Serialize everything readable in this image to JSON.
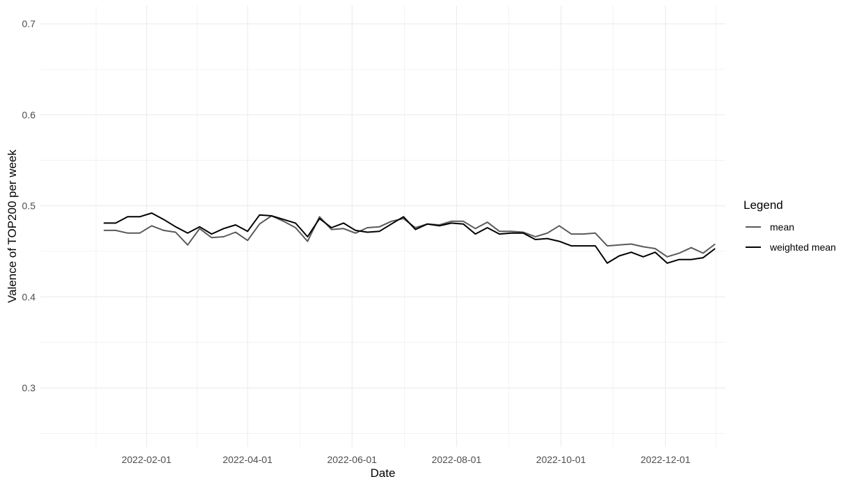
{
  "chart_data": {
    "type": "line",
    "xlabel": "Date",
    "ylabel": "Valence of TOP200 per week",
    "ylim": [
      0.235,
      0.72
    ],
    "xlim": [
      "2021-12-01",
      "2023-01-05"
    ],
    "x_ticks": [
      "2022-02-01",
      "2022-04-01",
      "2022-06-01",
      "2022-08-01",
      "2022-10-01",
      "2022-12-01"
    ],
    "y_ticks": [
      0.3,
      0.4,
      0.5,
      0.6,
      0.7
    ],
    "y_tick_labels": [
      "0.3",
      "0.4",
      "0.5",
      "0.6",
      "0.7"
    ],
    "grid": true,
    "legend": {
      "title": "Legend",
      "position": "right"
    },
    "x": [
      "2022-01-07",
      "2022-01-14",
      "2022-01-21",
      "2022-01-28",
      "2022-02-04",
      "2022-02-11",
      "2022-02-18",
      "2022-02-25",
      "2022-03-04",
      "2022-03-11",
      "2022-03-18",
      "2022-03-25",
      "2022-04-01",
      "2022-04-08",
      "2022-04-15",
      "2022-04-22",
      "2022-04-29",
      "2022-05-06",
      "2022-05-13",
      "2022-05-20",
      "2022-05-27",
      "2022-06-03",
      "2022-06-10",
      "2022-06-17",
      "2022-06-24",
      "2022-07-01",
      "2022-07-08",
      "2022-07-15",
      "2022-07-22",
      "2022-07-29",
      "2022-08-05",
      "2022-08-12",
      "2022-08-19",
      "2022-08-26",
      "2022-09-02",
      "2022-09-09",
      "2022-09-16",
      "2022-09-23",
      "2022-09-30",
      "2022-10-07",
      "2022-10-14",
      "2022-10-21",
      "2022-10-28",
      "2022-11-04",
      "2022-11-11",
      "2022-11-18",
      "2022-11-25",
      "2022-12-02",
      "2022-12-09",
      "2022-12-16",
      "2022-12-23",
      "2022-12-30"
    ],
    "series": [
      {
        "name": "mean",
        "color": "#595959",
        "values": [
          0.473,
          0.473,
          0.47,
          0.47,
          0.478,
          0.473,
          0.471,
          0.457,
          0.475,
          0.465,
          0.466,
          0.471,
          0.462,
          0.48,
          0.489,
          0.483,
          0.476,
          0.461,
          0.488,
          0.474,
          0.475,
          0.47,
          0.476,
          0.477,
          0.483,
          0.486,
          0.476,
          0.48,
          0.479,
          0.483,
          0.483,
          0.475,
          0.482,
          0.472,
          0.472,
          0.471,
          0.466,
          0.47,
          0.478,
          0.469,
          0.469,
          0.47,
          0.456,
          0.457,
          0.458,
          0.455,
          0.453,
          0.444,
          0.448,
          0.454,
          0.448,
          0.458
        ]
      },
      {
        "name": "weighted mean",
        "color": "#000000",
        "values": [
          0.481,
          0.481,
          0.488,
          0.488,
          0.492,
          0.485,
          0.477,
          0.47,
          0.477,
          0.469,
          0.475,
          0.479,
          0.472,
          0.49,
          0.489,
          0.485,
          0.481,
          0.466,
          0.486,
          0.476,
          0.481,
          0.473,
          0.471,
          0.472,
          0.48,
          0.488,
          0.474,
          0.48,
          0.478,
          0.481,
          0.48,
          0.469,
          0.476,
          0.469,
          0.47,
          0.47,
          0.463,
          0.464,
          0.461,
          0.456,
          0.456,
          0.456,
          0.437,
          0.445,
          0.449,
          0.444,
          0.449,
          0.437,
          0.441,
          0.441,
          0.443,
          0.453
        ]
      }
    ]
  }
}
